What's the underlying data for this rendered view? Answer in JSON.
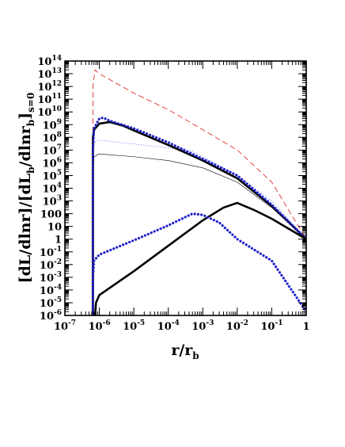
{
  "chart_data": {
    "type": "line",
    "title": "",
    "xlabel": {
      "base": "r/r",
      "sub": "b"
    },
    "ylabel": {
      "parts": [
        {
          "t": "[dL/dlnr]/[dL"
        },
        {
          "t": "b",
          "sub": true
        },
        {
          "t": "/dlnr"
        },
        {
          "t": "b",
          "sub": true
        },
        {
          "t": "]"
        },
        {
          "t": "s=0",
          "sub": true
        }
      ]
    },
    "x_scale": "log",
    "y_scale": "log",
    "xlim": [
      1e-07,
      1
    ],
    "ylim": [
      1e-06,
      100000000000000.0
    ],
    "x_ticks": [
      {
        "v": 1e-07,
        "base": "10",
        "exp": "-7"
      },
      {
        "v": 1e-06,
        "base": "10",
        "exp": "-6"
      },
      {
        "v": 1e-05,
        "base": "10",
        "exp": "-5"
      },
      {
        "v": 0.0001,
        "base": "10",
        "exp": "-4"
      },
      {
        "v": 0.001,
        "base": "10",
        "exp": "-3"
      },
      {
        "v": 0.01,
        "base": "10",
        "exp": "-2"
      },
      {
        "v": 0.1,
        "base": "10",
        "exp": "-1"
      },
      {
        "v": 1,
        "base": "1",
        "exp": ""
      }
    ],
    "y_ticks": [
      {
        "v": 100000000000000.0,
        "base": "10",
        "exp": "14"
      },
      {
        "v": 10000000000000.0,
        "base": "10",
        "exp": "13"
      },
      {
        "v": 1000000000000.0,
        "base": "10",
        "exp": "12"
      },
      {
        "v": 100000000000.0,
        "base": "10",
        "exp": "11"
      },
      {
        "v": 10000000000.0,
        "base": "10",
        "exp": "10"
      },
      {
        "v": 1000000000.0,
        "base": "10",
        "exp": "9"
      },
      {
        "v": 100000000.0,
        "base": "10",
        "exp": "8"
      },
      {
        "v": 10000000.0,
        "base": "10",
        "exp": "7"
      },
      {
        "v": 1000000.0,
        "base": "10",
        "exp": "6"
      },
      {
        "v": 100000.0,
        "base": "10",
        "exp": "5"
      },
      {
        "v": 10000.0,
        "base": "10",
        "exp": "4"
      },
      {
        "v": 1000.0,
        "base": "10",
        "exp": "3"
      },
      {
        "v": 100,
        "base": "100",
        "exp": ""
      },
      {
        "v": 10,
        "base": "10",
        "exp": ""
      },
      {
        "v": 1,
        "base": "1",
        "exp": ""
      },
      {
        "v": 0.1,
        "base": "10",
        "exp": "-1"
      },
      {
        "v": 0.01,
        "base": "10",
        "exp": "-2"
      },
      {
        "v": 0.001,
        "base": "10",
        "exp": "-3"
      },
      {
        "v": 0.0001,
        "base": "10",
        "exp": "-4"
      },
      {
        "v": 1e-05,
        "base": "10",
        "exp": "-5"
      },
      {
        "v": 1e-06,
        "base": "10",
        "exp": "-6"
      }
    ],
    "grid": false,
    "legend": "none",
    "series": [
      {
        "style": "dashed",
        "color": "#e0302a",
        "width": 0.9,
        "points": [
          [
            6.5e-07,
            1e-06
          ],
          [
            6.5e-07,
            1000000000000.0
          ],
          [
            7.5e-07,
            20000000000000.0
          ],
          [
            1e-06,
            10000000000000.0
          ],
          [
            1e-05,
            300000000000.0
          ],
          [
            0.0001,
            15000000000.0
          ],
          [
            0.001,
            400000000.0
          ],
          [
            0.01,
            10000000.0
          ],
          [
            0.1,
            30000.0
          ],
          [
            1,
            1
          ]
        ]
      },
      {
        "style": "solid",
        "color": "#000000",
        "width": 0.6,
        "points": [
          [
            6.5e-07,
            1e-06
          ],
          [
            6.5e-07,
            100000.0
          ],
          [
            7e-07,
            3000000.0
          ],
          [
            1e-06,
            5000000.0
          ],
          [
            1e-05,
            3000000.0
          ],
          [
            0.0001,
            1500000.0
          ],
          [
            0.001,
            400000.0
          ],
          [
            0.01,
            30000.0
          ],
          [
            0.1,
            300.0
          ],
          [
            1,
            1
          ]
        ]
      },
      {
        "style": "dotted",
        "color": "#3a3aff",
        "width": 0.9,
        "points": [
          [
            6.5e-07,
            1e-06
          ],
          [
            6.5e-07,
            1000000.0
          ],
          [
            7e-07,
            40000000.0
          ],
          [
            1e-06,
            60000000.0
          ],
          [
            1e-05,
            30000000.0
          ],
          [
            0.0001,
            15000000.0
          ],
          [
            0.0005,
            8000000.0
          ],
          [
            0.001,
            3000000.0
          ],
          [
            0.01,
            100000.0
          ],
          [
            0.1,
            1000.0
          ],
          [
            1,
            1
          ]
        ]
      },
      {
        "style": "solid",
        "color": "#000000",
        "width": 2.6,
        "points": [
          [
            6.5e-07,
            1e-06
          ],
          [
            6.5e-07,
            100000000.0
          ],
          [
            7e-07,
            400000000.0
          ],
          [
            1e-06,
            1200000000.0
          ],
          [
            2e-06,
            1600000000.0
          ],
          [
            5e-06,
            800000000.0
          ],
          [
            1e-05,
            350000000.0
          ],
          [
            0.0001,
            25000000.0
          ],
          [
            0.001,
            1500000.0
          ],
          [
            0.01,
            60000.0
          ],
          [
            0.1,
            400.0
          ],
          [
            1,
            1
          ]
        ]
      },
      {
        "style": "dotted",
        "color": "#1f1fcc",
        "width": 3.2,
        "points": [
          [
            6.5e-07,
            1e-06
          ],
          [
            6.5e-07,
            10000000.0
          ],
          [
            7e-07,
            500000000.0
          ],
          [
            1e-06,
            3000000000.0
          ],
          [
            1.3e-06,
            3500000000.0
          ],
          [
            2e-06,
            2000000000.0
          ],
          [
            1e-05,
            500000000.0
          ],
          [
            0.0001,
            40000000.0
          ],
          [
            0.001,
            2000000.0
          ],
          [
            0.01,
            100000.0
          ],
          [
            0.1,
            500.0
          ],
          [
            1,
            1
          ]
        ]
      },
      {
        "style": "solid",
        "color": "#000000",
        "width": 2.6,
        "points": [
          [
            7.5e-07,
            1e-06
          ],
          [
            8e-07,
            1e-05
          ],
          [
            1e-06,
            4e-05
          ],
          [
            1e-05,
            0.003
          ],
          [
            0.0001,
            0.3
          ],
          [
            0.001,
            30
          ],
          [
            0.004,
            300.0
          ],
          [
            0.01,
            700.0
          ],
          [
            0.03,
            200.0
          ],
          [
            0.1,
            40
          ],
          [
            1,
            1
          ]
        ]
      },
      {
        "style": "dotted",
        "color": "#1f1fcc",
        "width": 3.2,
        "points": [
          [
            6.5e-07,
            1e-06
          ],
          [
            6.5e-07,
            0.001
          ],
          [
            7e-07,
            0.02
          ],
          [
            1e-06,
            0.06
          ],
          [
            1e-05,
            0.8
          ],
          [
            0.0001,
            12
          ],
          [
            0.0005,
            100
          ],
          [
            0.001,
            80
          ],
          [
            0.003,
            20
          ],
          [
            0.01,
            1
          ],
          [
            0.1,
            0.02
          ],
          [
            1,
            2e-06
          ]
        ]
      }
    ]
  }
}
